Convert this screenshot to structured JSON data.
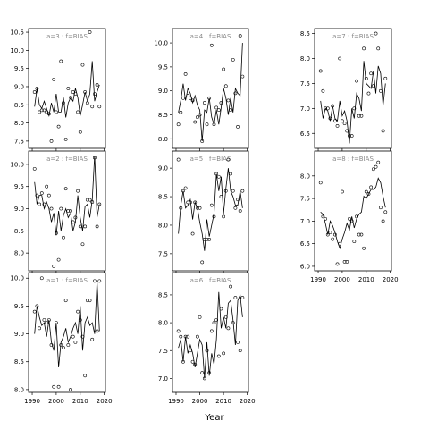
{
  "figure": {
    "xlabel": "Year"
  },
  "chart_data": [
    {
      "type": "line",
      "title": "a=3 : f=BIAS",
      "ylim": [
        7.3,
        10.6
      ],
      "yticks": [
        7.5,
        8.0,
        8.5,
        9.0,
        9.5,
        10.0,
        10.5
      ],
      "xlim": [
        1988.5,
        2020.5
      ],
      "xticks": [
        1990,
        2000,
        2010,
        2020
      ],
      "x": [
        1991,
        1992,
        1993,
        1994,
        1995,
        1996,
        1997,
        1998,
        1999,
        2000,
        2001,
        2002,
        2003,
        2004,
        2005,
        2006,
        2007,
        2008,
        2009,
        2010,
        2011,
        2012,
        2013,
        2014,
        2015,
        2016,
        2017,
        2018
      ],
      "line": [
        8.45,
        8.95,
        8.5,
        8.4,
        8.6,
        8.4,
        8.2,
        8.55,
        8.3,
        8.8,
        8.3,
        8.3,
        8.7,
        8.15,
        8.55,
        8.7,
        8.6,
        8.95,
        8.7,
        8.2,
        8.5,
        8.85,
        8.6,
        8.8,
        9.7,
        8.6,
        8.85,
        9.05
      ],
      "points": [
        8.85,
        8.95,
        8.3,
        8.35,
        8.35,
        8.3,
        8.25,
        7.5,
        9.2,
        8.3,
        7.9,
        9.7,
        8.55,
        7.55,
        8.95,
        8.7,
        8.85,
        8.8,
        8.3,
        7.75,
        9.6,
        8.85,
        8.55,
        10.5,
        8.45,
        8.8,
        9.05,
        8.45
      ]
    },
    {
      "type": "line",
      "title": "a=2 : f=BIAS",
      "ylim": [
        7.6,
        10.3
      ],
      "yticks": [
        8.0,
        8.5,
        9.0,
        9.5,
        10.0
      ],
      "xlim": [
        1988.5,
        2020.5
      ],
      "xticks": [
        1990,
        2000,
        2010,
        2020
      ],
      "x": [
        1991,
        1992,
        1993,
        1994,
        1995,
        1996,
        1997,
        1998,
        1999,
        2000,
        2001,
        2002,
        2003,
        2004,
        2005,
        2006,
        2007,
        2008,
        2009,
        2010,
        2011,
        2012,
        2013,
        2014,
        2015,
        2016,
        2017,
        2018
      ],
      "line": [
        9.6,
        9.1,
        9.3,
        9.3,
        9.0,
        9.15,
        9.0,
        8.7,
        8.9,
        8.4,
        8.95,
        8.5,
        8.85,
        9.0,
        8.8,
        8.9,
        8.5,
        8.7,
        9.3,
        8.8,
        8.5,
        9.05,
        9.1,
        8.8,
        9.2,
        10.2,
        8.8,
        9.1
      ],
      "points": [
        9.9,
        9.3,
        9.1,
        9.35,
        9.1,
        9.5,
        9.3,
        9.0,
        7.7,
        8.45,
        7.85,
        9.0,
        8.35,
        9.45,
        8.95,
        8.95,
        8.7,
        8.8,
        9.4,
        8.6,
        8.2,
        8.6,
        9.2,
        9.2,
        9.15,
        10.15,
        8.6,
        9.1
      ]
    },
    {
      "type": "line",
      "title": "a=1 : f=BIAS",
      "ylim": [
        7.95,
        10.1
      ],
      "yticks": [
        8.0,
        8.5,
        9.0,
        9.5,
        10.0
      ],
      "xlim": [
        1988.5,
        2020.5
      ],
      "xticks": [
        1990,
        2000,
        2010,
        2020
      ],
      "x": [
        1991,
        1992,
        1993,
        1994,
        1995,
        1996,
        1997,
        1998,
        1999,
        2000,
        2001,
        2002,
        2003,
        2004,
        2005,
        2006,
        2007,
        2008,
        2009,
        2010,
        2011,
        2012,
        2013,
        2014,
        2015,
        2016,
        2017,
        2018
      ],
      "line": [
        9.0,
        9.5,
        9.3,
        9.15,
        9.2,
        8.95,
        9.25,
        8.85,
        8.7,
        9.2,
        8.4,
        8.85,
        8.95,
        9.1,
        8.85,
        8.95,
        9.1,
        9.2,
        9.0,
        9.5,
        8.7,
        9.2,
        9.3,
        9.15,
        9.2,
        9.0,
        9.95,
        9.05
      ],
      "points": [
        9.4,
        9.5,
        9.1,
        10.0,
        9.25,
        9.2,
        9.25,
        8.8,
        8.05,
        9.2,
        8.05,
        8.8,
        8.75,
        9.6,
        8.8,
        8.0,
        8.95,
        8.85,
        9.4,
        9.25,
        8.95,
        8.25,
        9.6,
        9.6,
        8.9,
        9.95,
        9.05,
        9.95
      ]
    },
    {
      "type": "line",
      "title": "a=4 : f=BIAS",
      "ylim": [
        7.8,
        10.3
      ],
      "yticks": [
        8.0,
        8.5,
        9.0,
        9.5,
        10.0
      ],
      "xlim": [
        1988.5,
        2020.5
      ],
      "xticks": [
        1990,
        2000,
        2010,
        2020
      ],
      "x": [
        1991,
        1992,
        1993,
        1994,
        1995,
        1996,
        1997,
        1998,
        1999,
        2000,
        2001,
        2002,
        2003,
        2004,
        2005,
        2006,
        2007,
        2008,
        2009,
        2010,
        2011,
        2012,
        2013,
        2014,
        2015,
        2016,
        2017,
        2018
      ],
      "line": [
        8.55,
        8.8,
        9.15,
        8.8,
        9.05,
        8.95,
        8.75,
        8.9,
        8.7,
        8.6,
        7.95,
        8.6,
        8.55,
        8.85,
        8.45,
        8.3,
        8.6,
        8.3,
        8.65,
        9.05,
        8.85,
        8.5,
        8.85,
        8.55,
        9.05,
        8.95,
        8.9,
        10.0
      ],
      "points": [
        8.3,
        8.55,
        8.85,
        9.35,
        8.9,
        8.85,
        8.8,
        8.35,
        8.45,
        8.5,
        7.95,
        8.75,
        8.3,
        8.85,
        9.95,
        8.3,
        8.65,
        8.6,
        8.75,
        9.45,
        9.1,
        8.8,
        8.6,
        9.65,
        8.95,
        8.25,
        10.15,
        9.3
      ]
    },
    {
      "type": "line",
      "title": "a=5 : f=BIAS",
      "ylim": [
        7.2,
        9.3
      ],
      "yticks": [
        7.5,
        8.0,
        8.5,
        9.0
      ],
      "xlim": [
        1988.5,
        2020.5
      ],
      "xticks": [
        1990,
        2000,
        2010,
        2020
      ],
      "x": [
        1991,
        1992,
        1993,
        1994,
        1995,
        1996,
        1997,
        1998,
        1999,
        2000,
        2001,
        2002,
        2003,
        2004,
        2005,
        2006,
        2007,
        2008,
        2009,
        2010,
        2011,
        2012,
        2013,
        2014,
        2015,
        2016,
        2017,
        2018
      ],
      "line": [
        7.85,
        8.35,
        8.6,
        8.3,
        8.35,
        8.45,
        8.1,
        8.4,
        8.3,
        8.05,
        7.85,
        7.55,
        8.1,
        7.8,
        8.0,
        8.2,
        8.9,
        8.6,
        8.85,
        8.2,
        8.65,
        9.0,
        8.6,
        8.5,
        8.35,
        8.35,
        8.6,
        8.3
      ],
      "points": [
        9.15,
        8.3,
        8.6,
        8.65,
        8.4,
        8.4,
        7.85,
        8.4,
        8.3,
        8.3,
        7.35,
        7.75,
        7.75,
        7.75,
        8.35,
        8.15,
        8.9,
        8.85,
        8.5,
        8.15,
        8.6,
        9.15,
        8.9,
        8.6,
        8.3,
        8.45,
        8.25,
        8.6
      ]
    },
    {
      "type": "line",
      "title": "a=6 : f=BIAS",
      "ylim": [
        6.75,
        8.9
      ],
      "yticks": [
        7.0,
        7.5,
        8.0,
        8.5
      ],
      "xlim": [
        1988.5,
        2020.5
      ],
      "xticks": [
        1990,
        2000,
        2010,
        2020
      ],
      "x": [
        1991,
        1992,
        1993,
        1994,
        1995,
        1996,
        1997,
        1998,
        1999,
        2000,
        2001,
        2002,
        2003,
        2004,
        2005,
        2006,
        2007,
        2008,
        2009,
        2010,
        2011,
        2012,
        2013,
        2014,
        2015,
        2016,
        2017,
        2018
      ],
      "line": [
        7.55,
        7.7,
        7.3,
        7.75,
        7.45,
        7.6,
        7.45,
        7.2,
        7.45,
        7.7,
        7.6,
        7.0,
        7.65,
        7.05,
        7.45,
        7.25,
        7.7,
        8.55,
        7.9,
        8.1,
        7.9,
        8.35,
        8.4,
        8.05,
        7.6,
        8.4,
        8.5,
        8.1
      ],
      "points": [
        7.85,
        7.75,
        7.3,
        7.75,
        7.75,
        7.5,
        7.3,
        7.25,
        7.75,
        8.1,
        7.1,
        7.0,
        7.5,
        7.1,
        7.85,
        8.0,
        8.05,
        7.4,
        8.25,
        7.45,
        8.1,
        7.9,
        8.65,
        8.0,
        8.45,
        7.65,
        7.5,
        8.45
      ]
    },
    {
      "type": "line",
      "title": "a=7 : f=BIAS",
      "ylim": [
        6.2,
        8.6
      ],
      "yticks": [
        6.5,
        7.0,
        7.5,
        8.0,
        8.5
      ],
      "xlim": [
        1988.5,
        2020.5
      ],
      "xticks": [
        1990,
        2000,
        2010,
        2020
      ],
      "x": [
        1991,
        1992,
        1993,
        1994,
        1995,
        1996,
        1997,
        1998,
        1999,
        2000,
        2001,
        2002,
        2003,
        2004,
        2005,
        2006,
        2007,
        2008,
        2009,
        2010,
        2011,
        2012,
        2013,
        2014,
        2015,
        2016,
        2017,
        2018
      ],
      "line": [
        7.15,
        6.8,
        7.0,
        6.95,
        6.75,
        7.05,
        6.8,
        6.75,
        7.15,
        6.85,
        6.95,
        6.75,
        6.3,
        7.0,
        6.8,
        7.3,
        7.2,
        6.95,
        7.95,
        7.5,
        7.45,
        7.4,
        7.75,
        7.3,
        7.85,
        7.7,
        7.05,
        7.5
      ],
      "points": [
        7.75,
        7.35,
        7.0,
        7.0,
        6.8,
        7.05,
        6.75,
        6.65,
        8.0,
        6.75,
        6.7,
        6.55,
        6.45,
        6.45,
        7.0,
        7.55,
        6.85,
        6.85,
        8.2,
        7.6,
        7.3,
        7.7,
        7.45,
        8.5,
        8.2,
        7.35,
        6.55,
        7.6
      ]
    },
    {
      "type": "line",
      "title": "a=8 : f=BIAS",
      "ylim": [
        5.9,
        8.55
      ],
      "yticks": [
        6.0,
        6.5,
        7.0,
        7.5,
        8.0
      ],
      "xlim": [
        1988.5,
        2020.5
      ],
      "xticks": [
        1990,
        2000,
        2010,
        2020
      ],
      "x": [
        1991,
        1992,
        1993,
        1994,
        1995,
        1996,
        1997,
        1998,
        1999,
        2000,
        2001,
        2002,
        2003,
        2004,
        2005,
        2006,
        2007,
        2008,
        2009,
        2010,
        2011,
        2012,
        2013,
        2014,
        2015,
        2016,
        2017,
        2018
      ],
      "line": [
        7.2,
        7.15,
        6.95,
        6.7,
        7.0,
        6.9,
        6.75,
        6.55,
        6.4,
        6.6,
        6.75,
        6.95,
        6.8,
        7.1,
        6.85,
        7.05,
        7.15,
        7.2,
        7.55,
        7.5,
        7.6,
        7.7,
        7.7,
        7.75,
        7.95,
        7.85,
        7.55,
        7.3
      ],
      "points": [
        7.85,
        7.1,
        7.05,
        6.7,
        6.75,
        6.6,
        6.7,
        6.05,
        6.5,
        7.65,
        6.1,
        6.1,
        7.05,
        7.0,
        6.55,
        7.1,
        6.7,
        6.7,
        6.4,
        7.65,
        7.6,
        7.75,
        8.15,
        8.2,
        8.3,
        7.3,
        7.0,
        7.2
      ]
    }
  ]
}
